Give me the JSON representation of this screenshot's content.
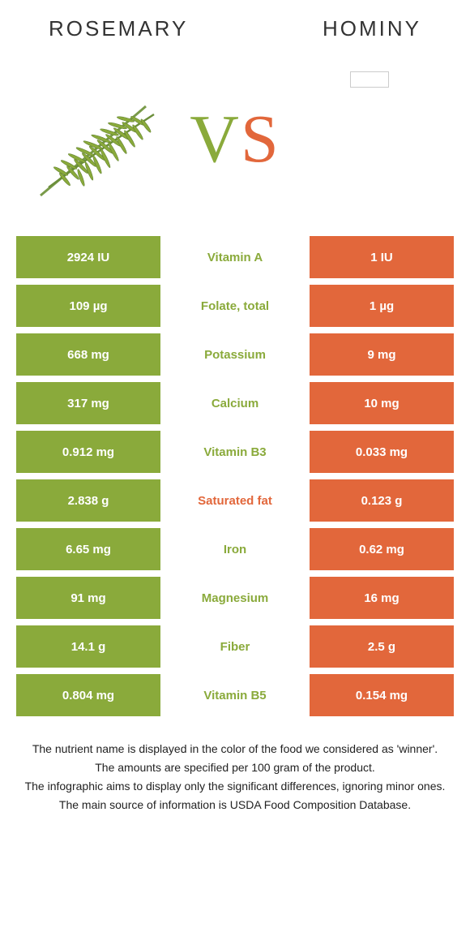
{
  "header": {
    "left_title": "ROSEMARY",
    "right_title": "HOMINY"
  },
  "colors": {
    "left": "#8aaa3b",
    "right": "#e2673b",
    "background": "#ffffff"
  },
  "vs": {
    "v": "V",
    "s": "S"
  },
  "rows": [
    {
      "left": "2924 IU",
      "mid": "Vitamin A",
      "right": "1 IU",
      "winner": "left"
    },
    {
      "left": "109 µg",
      "mid": "Folate, total",
      "right": "1 µg",
      "winner": "left"
    },
    {
      "left": "668 mg",
      "mid": "Potassium",
      "right": "9 mg",
      "winner": "left"
    },
    {
      "left": "317 mg",
      "mid": "Calcium",
      "right": "10 mg",
      "winner": "left"
    },
    {
      "left": "0.912 mg",
      "mid": "Vitamin B3",
      "right": "0.033 mg",
      "winner": "left"
    },
    {
      "left": "2.838 g",
      "mid": "Saturated fat",
      "right": "0.123 g",
      "winner": "right"
    },
    {
      "left": "6.65 mg",
      "mid": "Iron",
      "right": "0.62 mg",
      "winner": "left"
    },
    {
      "left": "91 mg",
      "mid": "Magnesium",
      "right": "16 mg",
      "winner": "left"
    },
    {
      "left": "14.1 g",
      "mid": "Fiber",
      "right": "2.5 g",
      "winner": "left"
    },
    {
      "left": "0.804 mg",
      "mid": "Vitamin B5",
      "right": "0.154 mg",
      "winner": "left"
    }
  ],
  "footer": {
    "line1": "The nutrient name is displayed in the color of the food we considered as 'winner'.",
    "line2": "The amounts are specified per 100 gram of the product.",
    "line3": "The infographic aims to display only the significant differences, ignoring minor ones.",
    "line4": "The main source of information is USDA Food Composition Database."
  }
}
